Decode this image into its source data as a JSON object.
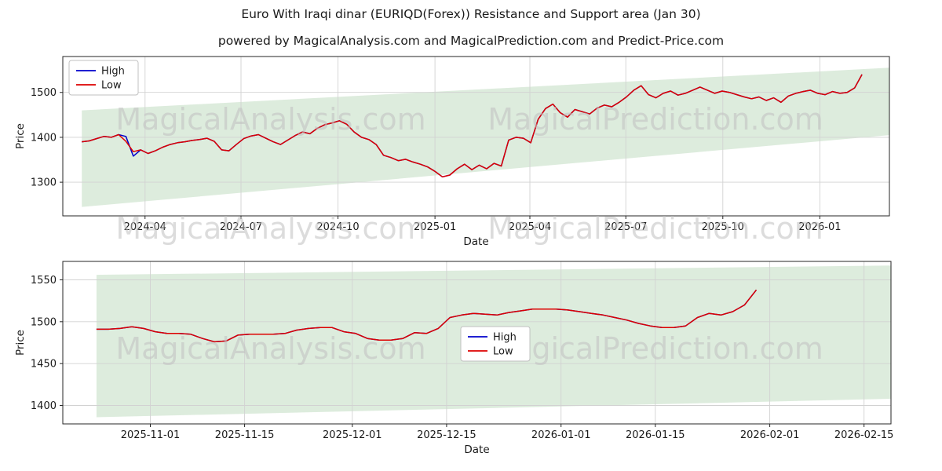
{
  "title": "Euro With Iraqi dinar (EURIQD(Forex)) Resistance and Support area (Jan 30)",
  "subtitle": "powered by MagicalAnalysis.com and MagicalPrediction.com and Predict-Price.com",
  "watermark": {
    "left": "MagicalAnalysis.com",
    "right": "MagicalPrediction.com"
  },
  "colors": {
    "high": "#0000cc",
    "low": "#dd0000",
    "band": "#8fbf8f",
    "band_opacity": 0.3,
    "grid": "#d2d2d2",
    "spine": "#262626",
    "tick_text": "#1a1a1a",
    "watermark": "#bfbfbf",
    "legend_border": "#c0c0c0"
  },
  "chart_data": [
    {
      "type": "line",
      "name": "long-range-chart",
      "ylabel": "Price",
      "xlabel": "Date",
      "x_domain": [
        "2024-01-14",
        "2026-03-08"
      ],
      "y_domain": [
        1225,
        1580
      ],
      "y_ticks": [
        1300,
        1400,
        1500
      ],
      "x_ticks": [
        {
          "label": "2024-04",
          "date": "2024-04-01"
        },
        {
          "label": "2024-07",
          "date": "2024-07-01"
        },
        {
          "label": "2024-10",
          "date": "2024-10-01"
        },
        {
          "label": "2025-01",
          "date": "2025-01-01"
        },
        {
          "label": "2025-04",
          "date": "2025-04-01"
        },
        {
          "label": "2025-07",
          "date": "2025-07-01"
        },
        {
          "label": "2025-10",
          "date": "2025-10-01"
        },
        {
          "label": "2026-01",
          "date": "2026-01-01"
        }
      ],
      "legend": [
        {
          "label": "High",
          "color": "#0000cc"
        },
        {
          "label": "Low",
          "color": "#dd0000"
        }
      ],
      "band": {
        "start": "2024-02-01",
        "end": "2026-03-08",
        "upper": [
          1460,
          1555
        ],
        "lower": [
          1245,
          1405
        ]
      },
      "series": {
        "name": "Low",
        "start": "2024-02-01",
        "end": "2026-02-10",
        "values": [
          1390,
          1392,
          1397,
          1402,
          1400,
          1406,
          1391,
          1368,
          1372,
          1364,
          1370,
          1378,
          1384,
          1388,
          1390,
          1393,
          1395,
          1398,
          1391,
          1372,
          1370,
          1384,
          1397,
          1403,
          1406,
          1398,
          1390,
          1384,
          1394,
          1404,
          1412,
          1408,
          1420,
          1428,
          1432,
          1437,
          1429,
          1412,
          1400,
          1395,
          1384,
          1360,
          1355,
          1348,
          1351,
          1345,
          1340,
          1334,
          1324,
          1312,
          1316,
          1330,
          1340,
          1328,
          1338,
          1330,
          1342,
          1336,
          1394,
          1400,
          1398,
          1388,
          1440,
          1464,
          1474,
          1455,
          1445,
          1462,
          1457,
          1452,
          1465,
          1472,
          1468,
          1478,
          1490,
          1505,
          1515,
          1495,
          1488,
          1498,
          1503,
          1494,
          1498,
          1505,
          1512,
          1505,
          1498,
          1503,
          1500,
          1495,
          1490,
          1486,
          1490,
          1482,
          1488,
          1478,
          1492,
          1498,
          1502,
          1505,
          1498,
          1495,
          1502,
          1498,
          1500,
          1510,
          1540
        ]
      },
      "high_series": {
        "name": "High",
        "same_as": "Low",
        "overrides": {
          "6": 1402,
          "7": 1358
        }
      }
    },
    {
      "type": "line",
      "name": "recent-range-chart",
      "ylabel": "Price",
      "xlabel": "Date",
      "x_domain": [
        "2025-10-19",
        "2026-02-19"
      ],
      "y_domain": [
        1378,
        1572
      ],
      "y_ticks": [
        1400,
        1450,
        1500,
        1550
      ],
      "x_ticks": [
        {
          "label": "2025-11-01",
          "date": "2025-11-01"
        },
        {
          "label": "2025-11-15",
          "date": "2025-11-15"
        },
        {
          "label": "2025-12-01",
          "date": "2025-12-01"
        },
        {
          "label": "2025-12-15",
          "date": "2025-12-15"
        },
        {
          "label": "2026-01-01",
          "date": "2026-01-01"
        },
        {
          "label": "2026-01-15",
          "date": "2026-01-15"
        },
        {
          "label": "2026-02-01",
          "date": "2026-02-01"
        },
        {
          "label": "2026-02-15",
          "date": "2026-02-15"
        }
      ],
      "legend": [
        {
          "label": "High",
          "color": "#0000cc"
        },
        {
          "label": "Low",
          "color": "#dd0000"
        }
      ],
      "band": {
        "start": "2025-10-24",
        "end": "2026-02-19",
        "upper": [
          1556,
          1567
        ],
        "lower": [
          1386,
          1408
        ]
      },
      "series": {
        "name": "Low",
        "start": "2025-10-24",
        "end": "2026-01-30",
        "values": [
          1491,
          1491,
          1492,
          1494,
          1492,
          1488,
          1486,
          1486,
          1485,
          1480,
          1476,
          1477,
          1484,
          1485,
          1485,
          1485,
          1486,
          1490,
          1492,
          1493,
          1493,
          1488,
          1486,
          1480,
          1478,
          1478,
          1480,
          1487,
          1486,
          1492,
          1505,
          1508,
          1510,
          1509,
          1508,
          1511,
          1513,
          1515,
          1515,
          1515,
          1514,
          1512,
          1510,
          1508,
          1505,
          1502,
          1498,
          1495,
          1493,
          1493,
          1495,
          1505,
          1510,
          1508,
          1512,
          1520,
          1538
        ]
      },
      "high_series": {
        "name": "High",
        "same_as": "Low",
        "overrides": {}
      }
    }
  ]
}
